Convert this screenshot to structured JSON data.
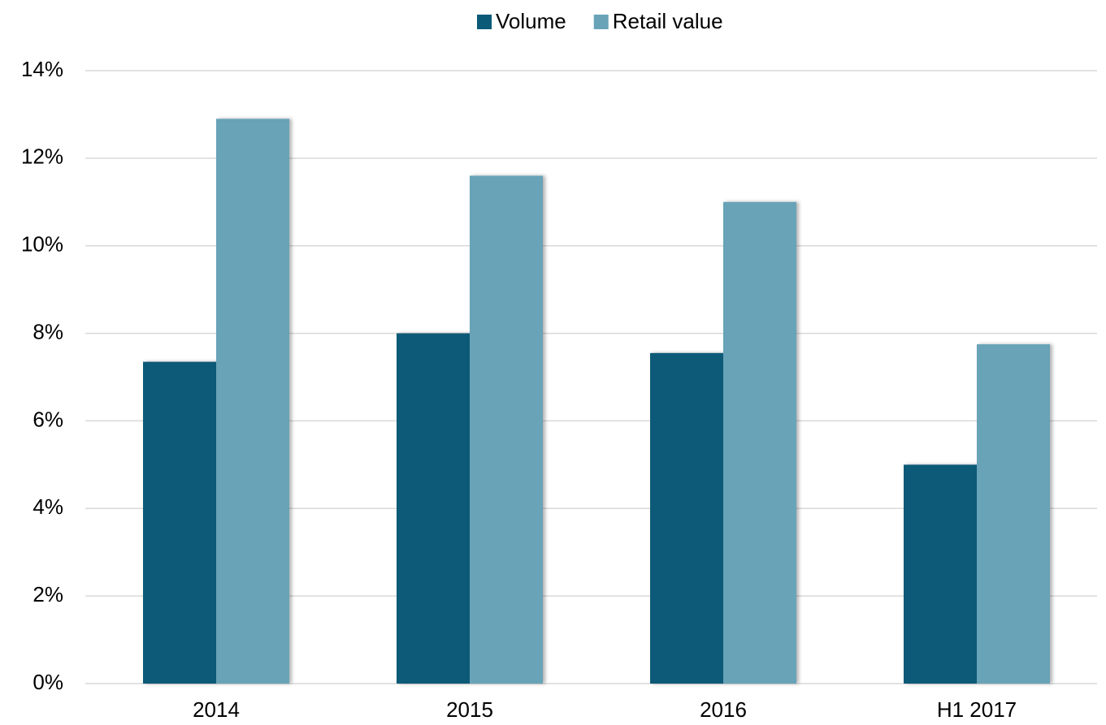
{
  "chart_data": {
    "type": "bar",
    "categories": [
      "2014",
      "2015",
      "2016",
      "H1 2017"
    ],
    "series": [
      {
        "name": "Volume",
        "color": "#0a5a78",
        "values": [
          7.35,
          8.0,
          7.55,
          5.0
        ]
      },
      {
        "name": "Retail value",
        "color": "#68a3b8",
        "values": [
          12.9,
          11.6,
          11.0,
          7.75
        ]
      }
    ],
    "ylim": [
      0,
      14
    ],
    "yticks": [
      {
        "value": 0,
        "label": "0%"
      },
      {
        "value": 2,
        "label": "2%"
      },
      {
        "value": 4,
        "label": "4%"
      },
      {
        "value": 6,
        "label": "6%"
      },
      {
        "value": 8,
        "label": "8%"
      },
      {
        "value": 10,
        "label": "10%"
      },
      {
        "value": 12,
        "label": "12%"
      },
      {
        "value": 14,
        "label": "14%"
      }
    ],
    "grid": true,
    "legend": "top"
  }
}
